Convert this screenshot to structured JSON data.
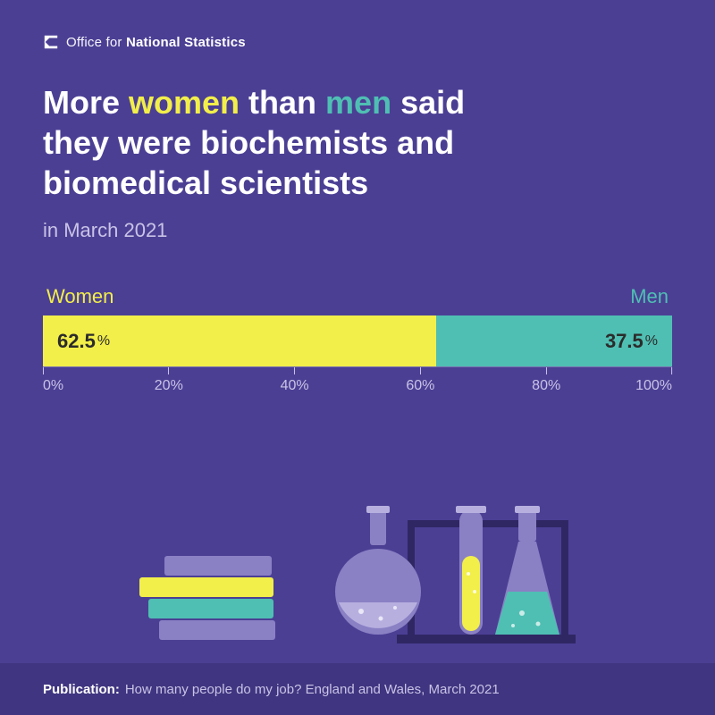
{
  "colors": {
    "background": "#4b3f94",
    "footer_bg": "#3f3580",
    "text_primary": "#ffffff",
    "text_muted": "#c9c3e6",
    "women": "#f2ee4a",
    "men": "#4fbfb3",
    "bar_text": "#2b2b2b",
    "tick_color": "#c9c3e6",
    "illus_dark": "#3a3175",
    "illus_mid": "#8a80c4",
    "illus_light": "#b7b0df"
  },
  "logo": {
    "prefix": "Office for ",
    "bold": "National Statistics"
  },
  "headline": {
    "segments": [
      {
        "text": "More ",
        "color": "#ffffff"
      },
      {
        "text": "women",
        "color": "#f2ee4a"
      },
      {
        "text": " than ",
        "color": "#ffffff"
      },
      {
        "text": "men",
        "color": "#4fbfb3"
      },
      {
        "text": " said\nthey were biochemists and\nbiomedical scientists",
        "color": "#ffffff"
      }
    ]
  },
  "subhead": "in March 2021",
  "chart": {
    "type": "stacked-bar-horizontal",
    "label_women": "Women",
    "label_men": "Men",
    "women_value": "62.5",
    "men_value": "37.5",
    "women_pct_width": 62.5,
    "men_pct_width": 37.5,
    "women_bar_color": "#f2ee4a",
    "men_bar_color": "#4fbfb3",
    "value_text_color": "#2b2b2b",
    "pct_symbol": "%",
    "axis": {
      "ticks": [
        {
          "pos": 0,
          "label": "0%"
        },
        {
          "pos": 20,
          "label": "20%"
        },
        {
          "pos": 40,
          "label": "40%"
        },
        {
          "pos": 60,
          "label": "60%"
        },
        {
          "pos": 80,
          "label": "80%"
        },
        {
          "pos": 100,
          "label": "100%"
        }
      ]
    }
  },
  "footer": {
    "label": "Publication:",
    "text": "How many people do my job? England and Wales, March 2021"
  }
}
